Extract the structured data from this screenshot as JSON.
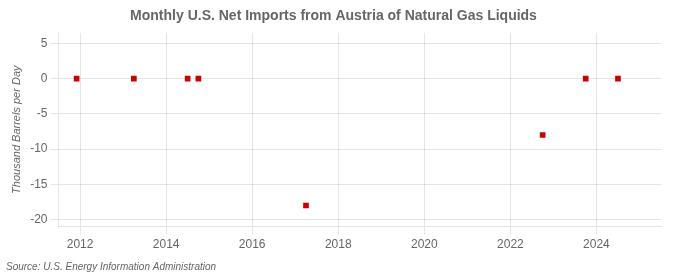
{
  "chart_data": {
    "type": "scatter",
    "title": "Monthly U.S. Net Imports from Austria of Natural Gas Liquids",
    "ylabel": "Thousand Barrels per Day",
    "source": "Source: U.S. Energy Information Administration",
    "x": [
      2011.92,
      2013.25,
      2014.5,
      2014.75,
      2017.25,
      2022.75,
      2023.75,
      2024.5
    ],
    "values": [
      0,
      0,
      0,
      0,
      -18,
      -8,
      0,
      0
    ],
    "color": "#cc0000",
    "marker": "square",
    "xlim": [
      2011.5,
      2025.5
    ],
    "xticks": [
      2012,
      2014,
      2016,
      2018,
      2020,
      2022,
      2024
    ],
    "ylim": [
      -21,
      6.5
    ],
    "yticks": [
      5,
      0,
      -5,
      -10,
      -15,
      -20
    ],
    "grid": true
  }
}
